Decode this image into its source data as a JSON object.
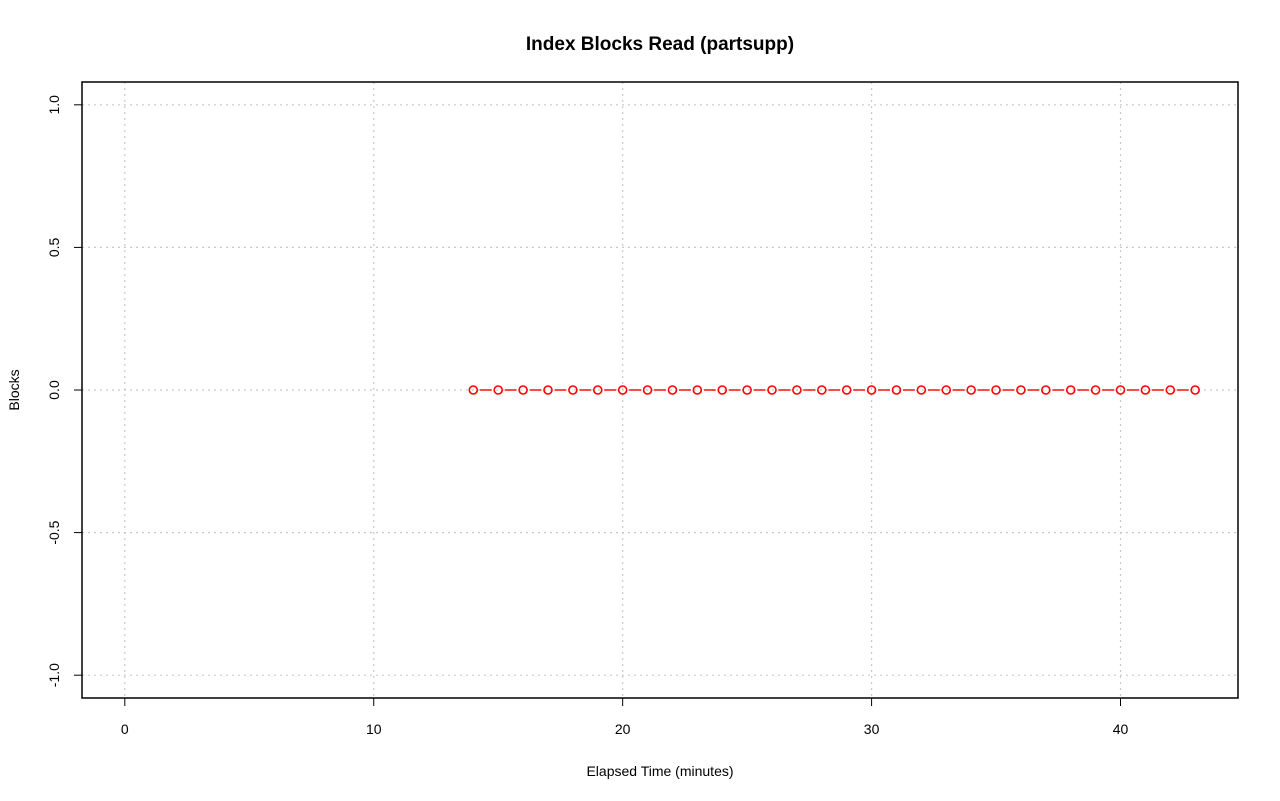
{
  "chart_data": {
    "type": "line",
    "title": "Index Blocks Read (partsupp)",
    "xlabel": "Elapsed Time (minutes)",
    "ylabel": "Blocks",
    "x_ticks": [
      "0",
      "10",
      "20",
      "30",
      "40"
    ],
    "y_ticks": [
      "-1.0",
      "-0.5",
      "0.0",
      "0.5",
      "1.0"
    ],
    "xlim": [
      -1.72,
      44.72
    ],
    "ylim": [
      -1.08,
      1.08
    ],
    "grid": true,
    "series": [
      {
        "color": "#ff0000",
        "line_style": "dashed",
        "marker": "open-circle",
        "x": [
          14,
          15,
          16,
          17,
          18,
          19,
          20,
          21,
          22,
          23,
          24,
          25,
          26,
          27,
          28,
          29,
          30,
          31,
          32,
          33,
          34,
          35,
          36,
          37,
          38,
          39,
          40,
          41,
          42,
          43
        ],
        "y": [
          0,
          0,
          0,
          0,
          0,
          0,
          0,
          0,
          0,
          0,
          0,
          0,
          0,
          0,
          0,
          0,
          0,
          0,
          0,
          0,
          0,
          0,
          0,
          0,
          0,
          0,
          0,
          0,
          0,
          0
        ]
      }
    ]
  }
}
